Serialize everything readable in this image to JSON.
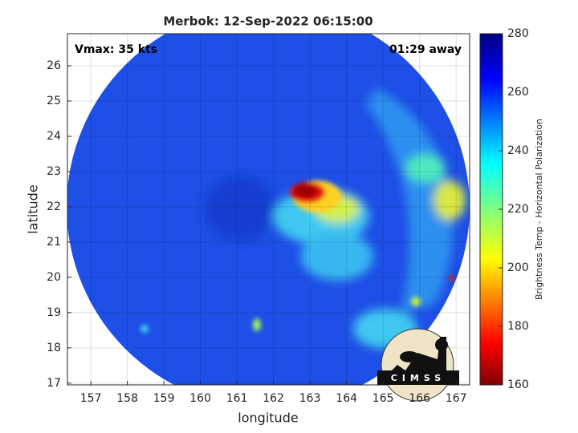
{
  "map": {
    "title": "Merbok: 12-Sep-2022 06:15:00",
    "annotations": [
      "Vmax: 35 kts",
      "01:29 away"
    ],
    "xlabel": "longitude",
    "ylabel": "latitude",
    "xlim": [
      156.36,
      167.37
    ],
    "ylim": [
      16.95,
      26.91
    ],
    "xticks": [
      157,
      158,
      159,
      160,
      161,
      162,
      163,
      164,
      165,
      166,
      167
    ],
    "yticks": [
      17,
      18,
      19,
      20,
      21,
      22,
      23,
      24,
      25,
      26
    ],
    "grid": true,
    "colorbar": {
      "label": "Brightness Temp - Horizontal Polarization",
      "lim": [
        160,
        280
      ],
      "ticks": [
        160,
        180,
        200,
        220,
        240,
        260,
        280
      ]
    },
    "logo": "CIMSS"
  }
}
